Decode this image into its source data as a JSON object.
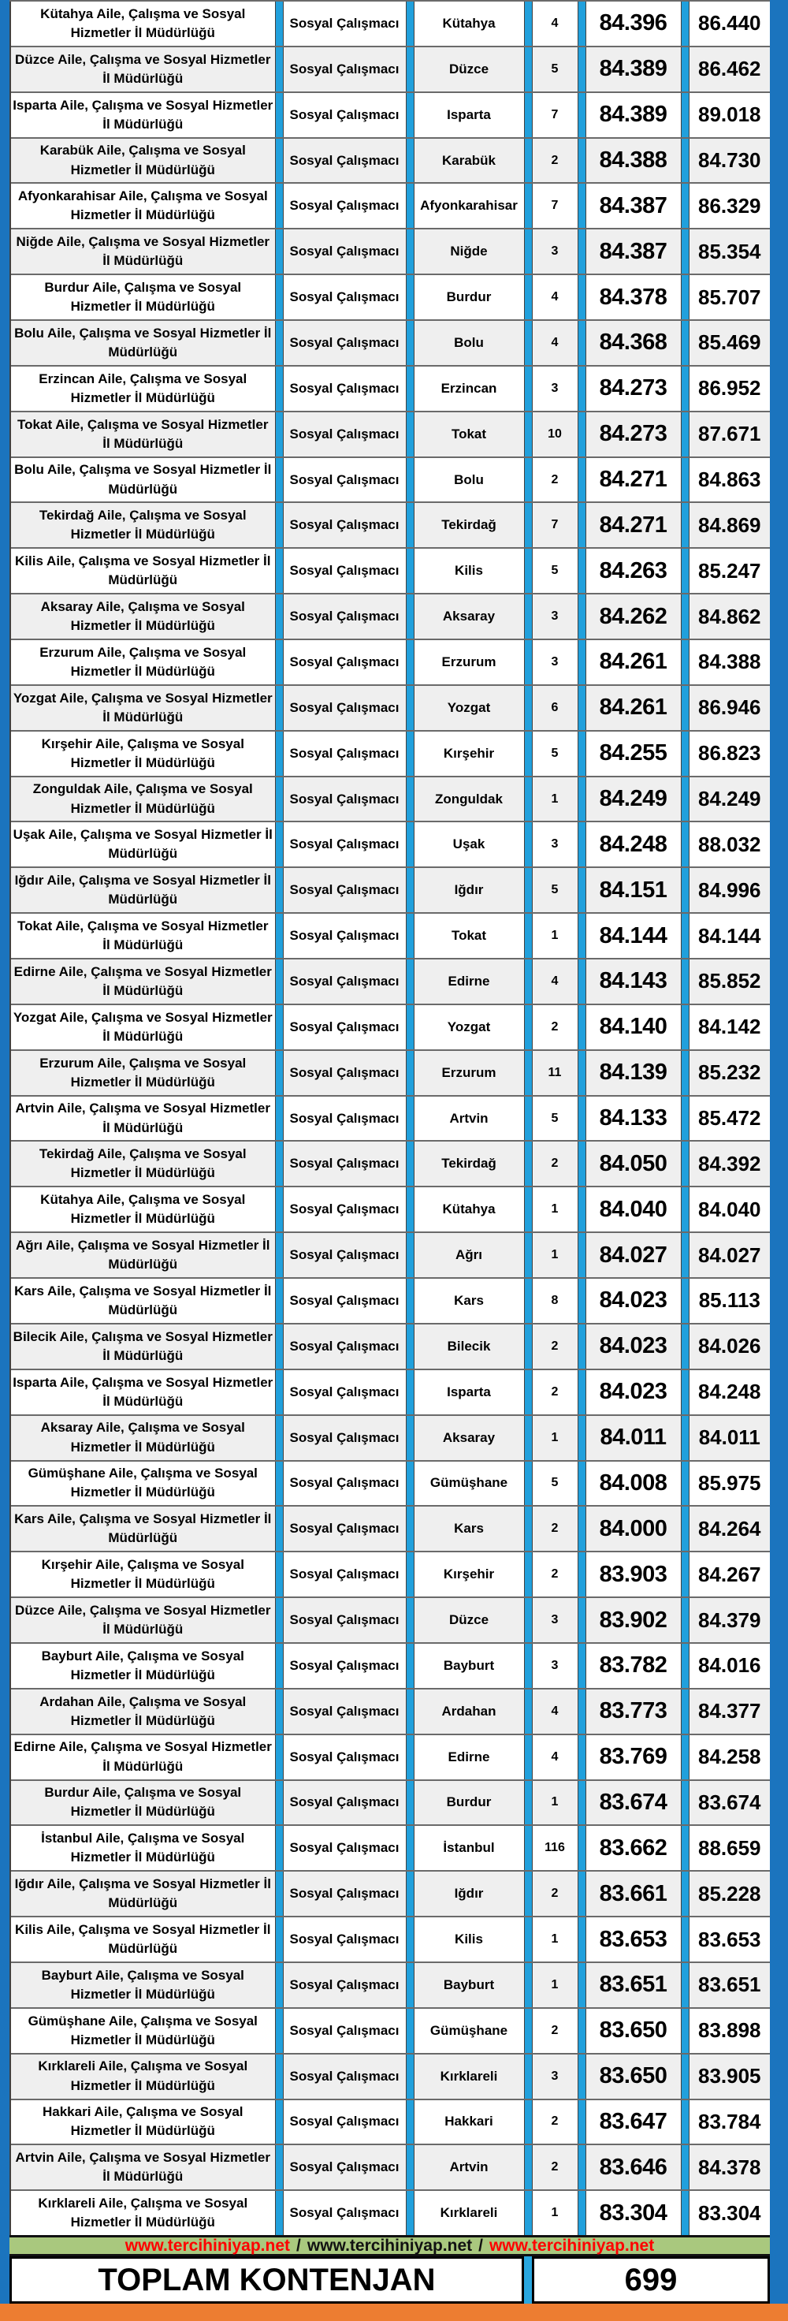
{
  "table": {
    "rows": [
      {
        "institution": "Kütahya Aile, Çalışma ve Sosyal Hizmetler İl Müdürlüğü",
        "position": "Sosyal Çalışmacı",
        "city": "Kütahya",
        "quota": "4",
        "min": "84.396",
        "max": "86.440"
      },
      {
        "institution": "Düzce Aile, Çalışma ve Sosyal Hizmetler İl Müdürlüğü",
        "position": "Sosyal Çalışmacı",
        "city": "Düzce",
        "quota": "5",
        "min": "84.389",
        "max": "86.462"
      },
      {
        "institution": "Isparta Aile, Çalışma ve Sosyal Hizmetler İl Müdürlüğü",
        "position": "Sosyal Çalışmacı",
        "city": "Isparta",
        "quota": "7",
        "min": "84.389",
        "max": "89.018"
      },
      {
        "institution": "Karabük Aile, Çalışma ve Sosyal Hizmetler İl Müdürlüğü",
        "position": "Sosyal Çalışmacı",
        "city": "Karabük",
        "quota": "2",
        "min": "84.388",
        "max": "84.730"
      },
      {
        "institution": "Afyonkarahisar Aile, Çalışma ve Sosyal Hizmetler İl Müdürlüğü",
        "position": "Sosyal Çalışmacı",
        "city": "Afyonkarahisar",
        "quota": "7",
        "min": "84.387",
        "max": "86.329"
      },
      {
        "institution": "Niğde Aile, Çalışma ve Sosyal Hizmetler İl Müdürlüğü",
        "position": "Sosyal Çalışmacı",
        "city": "Niğde",
        "quota": "3",
        "min": "84.387",
        "max": "85.354"
      },
      {
        "institution": "Burdur Aile, Çalışma ve Sosyal Hizmetler İl Müdürlüğü",
        "position": "Sosyal Çalışmacı",
        "city": "Burdur",
        "quota": "4",
        "min": "84.378",
        "max": "85.707"
      },
      {
        "institution": "Bolu Aile, Çalışma ve Sosyal Hizmetler İl Müdürlüğü",
        "position": "Sosyal Çalışmacı",
        "city": "Bolu",
        "quota": "4",
        "min": "84.368",
        "max": "85.469"
      },
      {
        "institution": "Erzincan Aile, Çalışma ve Sosyal Hizmetler İl Müdürlüğü",
        "position": "Sosyal Çalışmacı",
        "city": "Erzincan",
        "quota": "3",
        "min": "84.273",
        "max": "86.952"
      },
      {
        "institution": "Tokat Aile, Çalışma ve Sosyal Hizmetler İl Müdürlüğü",
        "position": "Sosyal Çalışmacı",
        "city": "Tokat",
        "quota": "10",
        "min": "84.273",
        "max": "87.671"
      },
      {
        "institution": "Bolu Aile, Çalışma ve Sosyal Hizmetler İl Müdürlüğü",
        "position": "Sosyal Çalışmacı",
        "city": "Bolu",
        "quota": "2",
        "min": "84.271",
        "max": "84.863"
      },
      {
        "institution": "Tekirdağ Aile, Çalışma ve Sosyal Hizmetler İl Müdürlüğü",
        "position": "Sosyal Çalışmacı",
        "city": "Tekirdağ",
        "quota": "7",
        "min": "84.271",
        "max": "84.869"
      },
      {
        "institution": "Kilis Aile, Çalışma ve Sosyal Hizmetler İl Müdürlüğü",
        "position": "Sosyal Çalışmacı",
        "city": "Kilis",
        "quota": "5",
        "min": "84.263",
        "max": "85.247"
      },
      {
        "institution": "Aksaray Aile, Çalışma ve Sosyal Hizmetler İl Müdürlüğü",
        "position": "Sosyal Çalışmacı",
        "city": "Aksaray",
        "quota": "3",
        "min": "84.262",
        "max": "84.862"
      },
      {
        "institution": "Erzurum Aile, Çalışma ve Sosyal Hizmetler İl Müdürlüğü",
        "position": "Sosyal Çalışmacı",
        "city": "Erzurum",
        "quota": "3",
        "min": "84.261",
        "max": "84.388"
      },
      {
        "institution": "Yozgat Aile, Çalışma ve Sosyal Hizmetler İl Müdürlüğü",
        "position": "Sosyal Çalışmacı",
        "city": "Yozgat",
        "quota": "6",
        "min": "84.261",
        "max": "86.946"
      },
      {
        "institution": "Kırşehir Aile, Çalışma ve Sosyal Hizmetler İl Müdürlüğü",
        "position": "Sosyal Çalışmacı",
        "city": "Kırşehir",
        "quota": "5",
        "min": "84.255",
        "max": "86.823"
      },
      {
        "institution": "Zonguldak Aile, Çalışma ve Sosyal Hizmetler İl Müdürlüğü",
        "position": "Sosyal Çalışmacı",
        "city": "Zonguldak",
        "quota": "1",
        "min": "84.249",
        "max": "84.249"
      },
      {
        "institution": "Uşak Aile, Çalışma ve Sosyal Hizmetler İl Müdürlüğü",
        "position": "Sosyal Çalışmacı",
        "city": "Uşak",
        "quota": "3",
        "min": "84.248",
        "max": "88.032"
      },
      {
        "institution": "Iğdır Aile, Çalışma ve Sosyal Hizmetler İl Müdürlüğü",
        "position": "Sosyal Çalışmacı",
        "city": "Iğdır",
        "quota": "5",
        "min": "84.151",
        "max": "84.996"
      },
      {
        "institution": "Tokat Aile, Çalışma ve Sosyal Hizmetler İl Müdürlüğü",
        "position": "Sosyal Çalışmacı",
        "city": "Tokat",
        "quota": "1",
        "min": "84.144",
        "max": "84.144"
      },
      {
        "institution": "Edirne Aile, Çalışma ve Sosyal Hizmetler İl Müdürlüğü",
        "position": "Sosyal Çalışmacı",
        "city": "Edirne",
        "quota": "4",
        "min": "84.143",
        "max": "85.852"
      },
      {
        "institution": "Yozgat Aile, Çalışma ve Sosyal Hizmetler İl Müdürlüğü",
        "position": "Sosyal Çalışmacı",
        "city": "Yozgat",
        "quota": "2",
        "min": "84.140",
        "max": "84.142"
      },
      {
        "institution": "Erzurum Aile, Çalışma ve Sosyal Hizmetler İl Müdürlüğü",
        "position": "Sosyal Çalışmacı",
        "city": "Erzurum",
        "quota": "11",
        "min": "84.139",
        "max": "85.232"
      },
      {
        "institution": "Artvin Aile, Çalışma ve Sosyal Hizmetler İl Müdürlüğü",
        "position": "Sosyal Çalışmacı",
        "city": "Artvin",
        "quota": "5",
        "min": "84.133",
        "max": "85.472"
      },
      {
        "institution": "Tekirdağ Aile, Çalışma ve Sosyal Hizmetler İl Müdürlüğü",
        "position": "Sosyal Çalışmacı",
        "city": "Tekirdağ",
        "quota": "2",
        "min": "84.050",
        "max": "84.392"
      },
      {
        "institution": "Kütahya Aile, Çalışma ve Sosyal Hizmetler İl Müdürlüğü",
        "position": "Sosyal Çalışmacı",
        "city": "Kütahya",
        "quota": "1",
        "min": "84.040",
        "max": "84.040"
      },
      {
        "institution": "Ağrı Aile, Çalışma ve Sosyal Hizmetler İl Müdürlüğü",
        "position": "Sosyal Çalışmacı",
        "city": "Ağrı",
        "quota": "1",
        "min": "84.027",
        "max": "84.027"
      },
      {
        "institution": "Kars Aile, Çalışma ve Sosyal Hizmetler İl Müdürlüğü",
        "position": "Sosyal Çalışmacı",
        "city": "Kars",
        "quota": "8",
        "min": "84.023",
        "max": "85.113"
      },
      {
        "institution": "Bilecik Aile, Çalışma ve Sosyal Hizmetler İl Müdürlüğü",
        "position": "Sosyal Çalışmacı",
        "city": "Bilecik",
        "quota": "2",
        "min": "84.023",
        "max": "84.026"
      },
      {
        "institution": "Isparta Aile, Çalışma ve Sosyal Hizmetler İl Müdürlüğü",
        "position": "Sosyal Çalışmacı",
        "city": "Isparta",
        "quota": "2",
        "min": "84.023",
        "max": "84.248"
      },
      {
        "institution": "Aksaray Aile, Çalışma ve Sosyal Hizmetler İl Müdürlüğü",
        "position": "Sosyal Çalışmacı",
        "city": "Aksaray",
        "quota": "1",
        "min": "84.011",
        "max": "84.011"
      },
      {
        "institution": "Gümüşhane Aile, Çalışma ve Sosyal Hizmetler İl Müdürlüğü",
        "position": "Sosyal Çalışmacı",
        "city": "Gümüşhane",
        "quota": "5",
        "min": "84.008",
        "max": "85.975"
      },
      {
        "institution": "Kars Aile, Çalışma ve Sosyal Hizmetler İl Müdürlüğü",
        "position": "Sosyal Çalışmacı",
        "city": "Kars",
        "quota": "2",
        "min": "84.000",
        "max": "84.264"
      },
      {
        "institution": "Kırşehir Aile, Çalışma ve Sosyal Hizmetler İl Müdürlüğü",
        "position": "Sosyal Çalışmacı",
        "city": "Kırşehir",
        "quota": "2",
        "min": "83.903",
        "max": "84.267"
      },
      {
        "institution": "Düzce Aile, Çalışma ve Sosyal Hizmetler İl Müdürlüğü",
        "position": "Sosyal Çalışmacı",
        "city": "Düzce",
        "quota": "3",
        "min": "83.902",
        "max": "84.379"
      },
      {
        "institution": "Bayburt Aile, Çalışma ve Sosyal Hizmetler İl Müdürlüğü",
        "position": "Sosyal Çalışmacı",
        "city": "Bayburt",
        "quota": "3",
        "min": "83.782",
        "max": "84.016"
      },
      {
        "institution": "Ardahan Aile, Çalışma ve Sosyal Hizmetler İl Müdürlüğü",
        "position": "Sosyal Çalışmacı",
        "city": "Ardahan",
        "quota": "4",
        "min": "83.773",
        "max": "84.377"
      },
      {
        "institution": "Edirne Aile, Çalışma ve Sosyal Hizmetler İl Müdürlüğü",
        "position": "Sosyal Çalışmacı",
        "city": "Edirne",
        "quota": "4",
        "min": "83.769",
        "max": "84.258"
      },
      {
        "institution": "Burdur Aile, Çalışma ve Sosyal Hizmetler İl Müdürlüğü",
        "position": "Sosyal Çalışmacı",
        "city": "Burdur",
        "quota": "1",
        "min": "83.674",
        "max": "83.674"
      },
      {
        "institution": "İstanbul Aile, Çalışma ve Sosyal Hizmetler İl Müdürlüğü",
        "position": "Sosyal Çalışmacı",
        "city": "İstanbul",
        "quota": "116",
        "min": "83.662",
        "max": "88.659"
      },
      {
        "institution": "Iğdır Aile, Çalışma ve Sosyal Hizmetler İl Müdürlüğü",
        "position": "Sosyal Çalışmacı",
        "city": "Iğdır",
        "quota": "2",
        "min": "83.661",
        "max": "85.228"
      },
      {
        "institution": "Kilis Aile, Çalışma ve Sosyal Hizmetler İl Müdürlüğü",
        "position": "Sosyal Çalışmacı",
        "city": "Kilis",
        "quota": "1",
        "min": "83.653",
        "max": "83.653"
      },
      {
        "institution": "Bayburt Aile, Çalışma ve Sosyal Hizmetler İl Müdürlüğü",
        "position": "Sosyal Çalışmacı",
        "city": "Bayburt",
        "quota": "1",
        "min": "83.651",
        "max": "83.651"
      },
      {
        "institution": "Gümüşhane Aile, Çalışma ve Sosyal Hizmetler İl Müdürlüğü",
        "position": "Sosyal Çalışmacı",
        "city": "Gümüşhane",
        "quota": "2",
        "min": "83.650",
        "max": "83.898"
      },
      {
        "institution": "Kırklareli Aile, Çalışma ve Sosyal Hizmetler İl Müdürlüğü",
        "position": "Sosyal Çalışmacı",
        "city": "Kırklareli",
        "quota": "3",
        "min": "83.650",
        "max": "83.905"
      },
      {
        "institution": "Hakkari Aile, Çalışma ve Sosyal Hizmetler İl Müdürlüğü",
        "position": "Sosyal Çalışmacı",
        "city": "Hakkari",
        "quota": "2",
        "min": "83.647",
        "max": "83.784"
      },
      {
        "institution": "Artvin Aile, Çalışma ve Sosyal Hizmetler İl Müdürlüğü",
        "position": "Sosyal Çalışmacı",
        "city": "Artvin",
        "quota": "2",
        "min": "83.646",
        "max": "84.378"
      },
      {
        "institution": "Kırklareli Aile, Çalışma ve Sosyal Hizmetler İl Müdürlüğü",
        "position": "Sosyal Çalışmacı",
        "city": "Kırklareli",
        "quota": "1",
        "min": "83.304",
        "max": "83.304"
      }
    ]
  },
  "footer": {
    "urls": [
      "www.tercihiniyap.net",
      "www.tercihiniyap.net",
      "www.tercihiniyap.net"
    ],
    "separator": "/",
    "total_label": "TOPLAM KONTENJAN",
    "total_value": "699"
  },
  "colors": {
    "outer_border": "#1B74BE",
    "column_separator": "#21A0DC",
    "alt_row": "#EFEFEF",
    "url_band": "#A9C87E",
    "url_red": "#FF0000",
    "orange_band": "#ED7D31"
  }
}
